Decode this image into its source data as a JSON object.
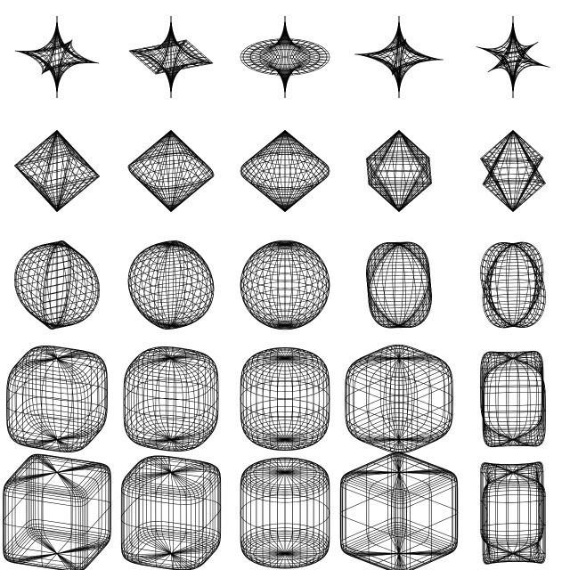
{
  "figure": {
    "background": "#ffffff",
    "line_color": "#000000",
    "rows": [
      {
        "shape_family": "astroid-spindle",
        "cells": [
          {
            "shape": "spindle-cusp-square-flat",
            "exp_ew": 3.0,
            "exp_ns": 4.0,
            "yaw": 0.35
          },
          {
            "shape": "spindle-cusp-rounded-flat",
            "exp_ew": 2.0,
            "exp_ns": 4.0,
            "yaw": 0.35
          },
          {
            "shape": "spindle-cusp-disc",
            "exp_ew": 1.0,
            "exp_ns": 4.0,
            "yaw": 0.0
          },
          {
            "shape": "spindle-cusp-star-4",
            "exp_ew": 3.0,
            "exp_ns": 4.0,
            "yaw": 0.15
          },
          {
            "shape": "spindle-cusp-star-4-concave",
            "exp_ew": 5.0,
            "exp_ns": 4.0,
            "yaw": 0.6
          }
        ]
      },
      {
        "shape_family": "octahedron-like",
        "cells": [
          {
            "shape": "double-pyramid-square",
            "exp_ew": 2.0,
            "exp_ns": 2.0,
            "yaw": 0.3
          },
          {
            "shape": "double-pyramid-rounded",
            "exp_ew": 1.4,
            "exp_ns": 2.0,
            "yaw": 0.3
          },
          {
            "shape": "double-cone",
            "exp_ew": 1.0,
            "exp_ns": 2.0,
            "yaw": 0.0
          },
          {
            "shape": "double-pyramid-square-tilted",
            "exp_ew": 2.0,
            "exp_ns": 2.0,
            "yaw": 0.75
          },
          {
            "shape": "double-pyramid-pinched",
            "exp_ew": 3.0,
            "exp_ns": 2.0,
            "yaw": 0.75
          }
        ]
      },
      {
        "shape_family": "ellipsoid-like",
        "cells": [
          {
            "shape": "pillow-squarish",
            "exp_ew": 2.0,
            "exp_ns": 1.0,
            "yaw": 0.3
          },
          {
            "shape": "pillow-rounded",
            "exp_ew": 1.4,
            "exp_ns": 1.0,
            "yaw": 0.3
          },
          {
            "shape": "sphere",
            "exp_ew": 1.0,
            "exp_ns": 1.0,
            "yaw": 0.0
          },
          {
            "shape": "pillow-square-tilted",
            "exp_ew": 2.0,
            "exp_ns": 1.0,
            "yaw": 0.75
          },
          {
            "shape": "pillow-pinched",
            "exp_ew": 3.0,
            "exp_ns": 1.0,
            "yaw": 0.75
          }
        ]
      },
      {
        "shape_family": "rounded-cube",
        "cells": [
          {
            "shape": "rounded-cube",
            "exp_ew": 0.45,
            "exp_ns": 0.45,
            "yaw": 0.35
          },
          {
            "shape": "rounded-cube-soft",
            "exp_ew": 0.7,
            "exp_ns": 0.45,
            "yaw": 0.35
          },
          {
            "shape": "rounded-cylinder",
            "exp_ew": 1.0,
            "exp_ns": 0.45,
            "yaw": 0.0
          },
          {
            "shape": "rounded-cube-tilted",
            "exp_ew": 0.45,
            "exp_ns": 0.45,
            "yaw": 0.75
          },
          {
            "shape": "rounded-cross-prism",
            "exp_ew": 2.2,
            "exp_ns": 0.45,
            "yaw": 0.75
          }
        ]
      },
      {
        "shape_family": "box",
        "cells": [
          {
            "shape": "box",
            "exp_ew": 0.2,
            "exp_ns": 0.2,
            "yaw": 0.35
          },
          {
            "shape": "box-soft",
            "exp_ew": 0.5,
            "exp_ns": 0.2,
            "yaw": 0.35
          },
          {
            "shape": "cylinder",
            "exp_ew": 1.0,
            "exp_ns": 0.2,
            "yaw": 0.0
          },
          {
            "shape": "box-tilted",
            "exp_ew": 0.2,
            "exp_ns": 0.2,
            "yaw": 0.75
          },
          {
            "shape": "cross-prism",
            "exp_ew": 2.6,
            "exp_ns": 0.2,
            "yaw": 0.75
          }
        ]
      }
    ]
  }
}
